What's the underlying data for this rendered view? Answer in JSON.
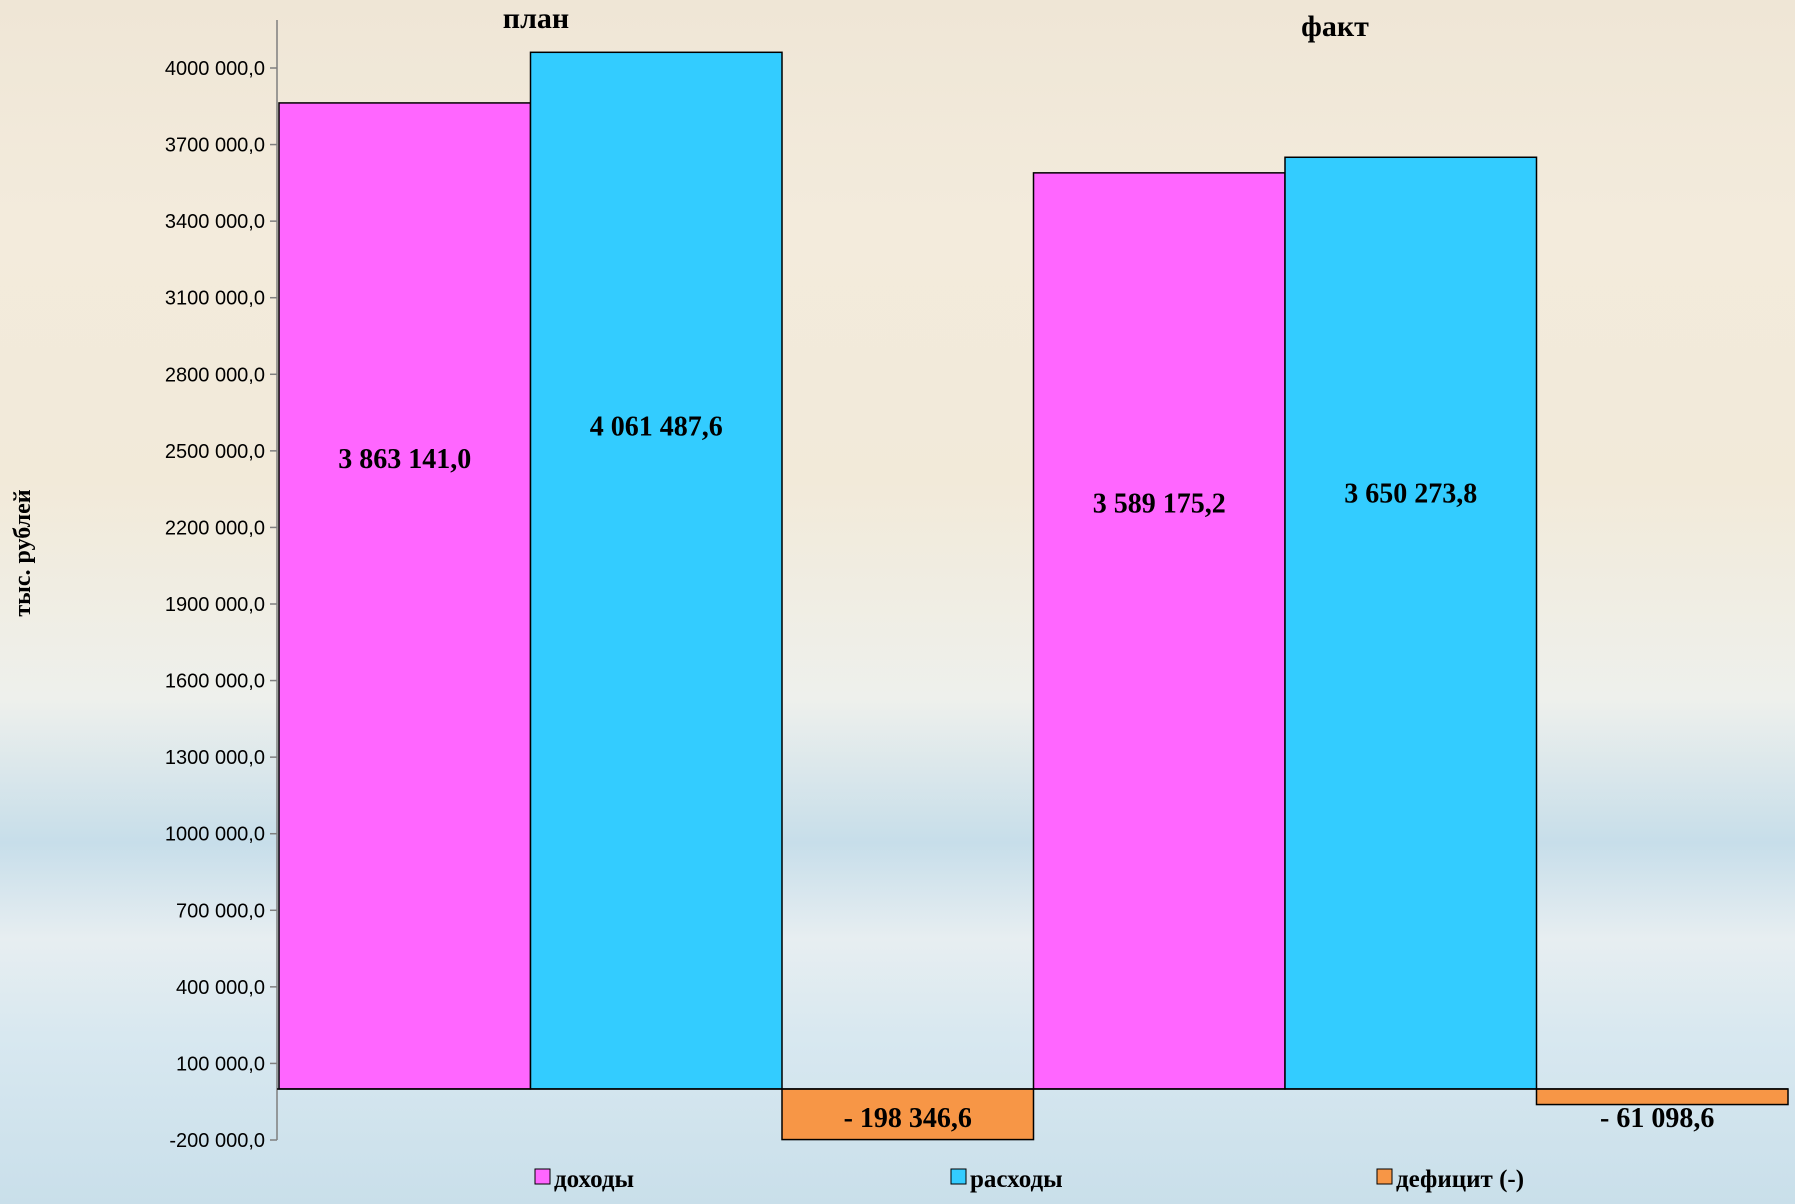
{
  "chart_data": {
    "type": "bar",
    "categories": [
      "план",
      "факт"
    ],
    "series": [
      {
        "name": "доходы",
        "values": [
          3863141.0,
          3589175.2
        ],
        "labels": [
          "3 863 141,0",
          "3 589 175,2"
        ],
        "color": "#ff66ff"
      },
      {
        "name": "расходы",
        "values": [
          4061487.6,
          3650273.8
        ],
        "labels": [
          "4 061 487,6",
          "3 650 273,8"
        ],
        "color": "#33ccff"
      },
      {
        "name": "дефицит (-)",
        "values": [
          -198346.6,
          -61098.6
        ],
        "labels": [
          "- 198 346,6",
          "- 61 098,6"
        ],
        "color": "#f79646"
      }
    ],
    "ylabel": "тыс. рублей",
    "ylim": [
      -200000,
      4000000
    ],
    "yticks": [
      -200000,
      100000,
      400000,
      700000,
      1000000,
      1300000,
      1600000,
      1900000,
      2200000,
      2500000,
      2800000,
      3100000,
      3400000,
      3700000,
      4000000
    ],
    "ytick_labels": [
      "-200 000,0",
      "100 000,0",
      "400 000,0",
      "700 000,0",
      "1000 000,0",
      "1300 000,0",
      "1600 000,0",
      "1900 000,0",
      "2200 000,0",
      "2500 000,0",
      "2800 000,0",
      "3100 000,0",
      "3400 000,0",
      "3700 000,0",
      "4000 000,0"
    ],
    "legend_position": "bottom",
    "grid": false
  }
}
